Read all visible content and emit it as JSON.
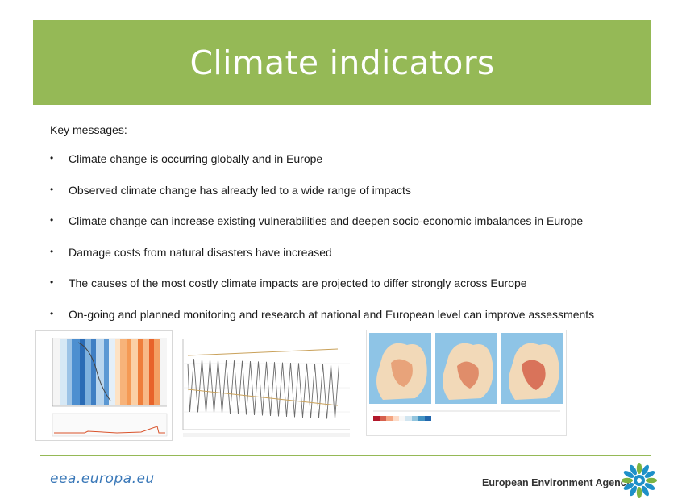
{
  "header": {
    "title": "Climate indicators"
  },
  "intro": {
    "label": "Key messages:"
  },
  "messages": [
    "Climate change is occurring globally and in Europe",
    "Observed climate change has already led to a wide range of impacts",
    "Climate change can increase existing vulnerabilities and deepen socio-economic imbalances in Europe",
    "Damage costs from natural disasters have increased",
    "The causes of the most costly climate impacts are projected to differ strongly across Europe",
    "On-going and planned monitoring and research at national and European level can improve assessments"
  ],
  "bullet_symbol": "•",
  "figures": {
    "left_chart_label": "",
    "middle_chart_label": "",
    "map_label": ""
  },
  "footer": {
    "website": "eea.europa.eu",
    "organization": "European Environment Agency"
  },
  "colors": {
    "accent_green": "#95b956",
    "link_blue": "#3a78b8",
    "logo_blue": "#1e90c8",
    "logo_green": "#7cb342"
  },
  "icons": {
    "logo": "eea-swirl-logo-icon"
  }
}
